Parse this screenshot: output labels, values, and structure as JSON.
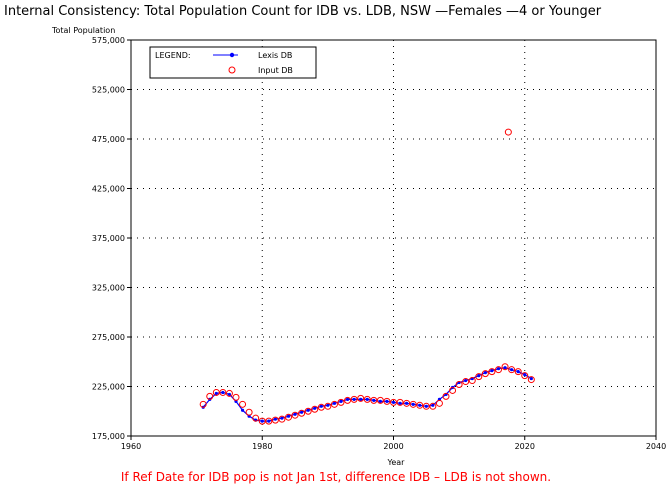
{
  "chart_data": {
    "type": "line",
    "title": "Internal Consistency: Total Population Count for IDB vs. LDB, NSW —Females —4 or Younger",
    "xlabel": "Year",
    "ylabel": "Total Population",
    "xlim": [
      1960,
      2040
    ],
    "ylim": [
      175000,
      575000
    ],
    "x_ticks": [
      "1960",
      "1980",
      "2000",
      "2020",
      "2040"
    ],
    "y_ticks": [
      "175,000",
      "225,000",
      "275,000",
      "325,000",
      "375,000",
      "425,000",
      "475,000",
      "525,000",
      "575,000"
    ],
    "grid": "dotted",
    "legend": {
      "title": "LEGEND:",
      "position": "top-left",
      "entries": [
        "Lexis DB",
        "Input DB"
      ]
    },
    "series": [
      {
        "name": "Lexis DB",
        "style": "line-with-dots",
        "color": "#0000ff",
        "x": [
          1971,
          1972,
          1973,
          1974,
          1975,
          1976,
          1977,
          1978,
          1979,
          1980,
          1981,
          1982,
          1983,
          1984,
          1985,
          1986,
          1987,
          1988,
          1989,
          1990,
          1991,
          1992,
          1993,
          1994,
          1995,
          1996,
          1997,
          1998,
          1999,
          2000,
          2001,
          2002,
          2003,
          2004,
          2005,
          2006,
          2007,
          2008,
          2009,
          2010,
          2011,
          2012,
          2013,
          2014,
          2015,
          2016,
          2017,
          2018,
          2019,
          2020,
          2021
        ],
        "values": [
          204000,
          212000,
          218000,
          219000,
          217000,
          210000,
          201000,
          195000,
          191000,
          190000,
          190000,
          192000,
          193000,
          195000,
          197000,
          199000,
          201000,
          203000,
          205000,
          206000,
          208000,
          210000,
          212000,
          212000,
          212000,
          212000,
          211000,
          210000,
          210000,
          209000,
          208000,
          208000,
          207000,
          206000,
          205000,
          206000,
          212000,
          217000,
          224000,
          229000,
          231000,
          233000,
          236000,
          239000,
          241000,
          243000,
          244000,
          242000,
          240000,
          237000,
          233000
        ]
      },
      {
        "name": "Input DB",
        "style": "circles",
        "color": "#ff0000",
        "x": [
          1971,
          1972,
          1973,
          1974,
          1975,
          1976,
          1977,
          1978,
          1979,
          1980,
          1981,
          1982,
          1983,
          1984,
          1985,
          1986,
          1987,
          1988,
          1989,
          1990,
          1991,
          1992,
          1993,
          1994,
          1995,
          1996,
          1997,
          1998,
          1999,
          2000,
          2001,
          2002,
          2003,
          2004,
          2005,
          2006,
          2007,
          2008,
          2009,
          2010,
          2011,
          2012,
          2013,
          2014,
          2015,
          2016,
          2017,
          2017.5,
          2018,
          2019,
          2020,
          2021
        ],
        "values": [
          207000,
          215000,
          219000,
          219000,
          218000,
          214000,
          207000,
          199000,
          193000,
          190000,
          190000,
          191000,
          192000,
          194000,
          196000,
          198000,
          200000,
          202000,
          204000,
          205000,
          207000,
          209000,
          211000,
          212000,
          213000,
          212000,
          211000,
          211000,
          210000,
          209000,
          209000,
          208000,
          207000,
          206000,
          205000,
          205000,
          208000,
          215000,
          221000,
          227000,
          230000,
          231000,
          235000,
          238000,
          240000,
          242000,
          245000,
          482000,
          242000,
          240000,
          236000,
          232000
        ]
      }
    ],
    "footnote": "If Ref Date for IDB pop is not Jan 1st, difference IDB – LDB is not shown."
  }
}
